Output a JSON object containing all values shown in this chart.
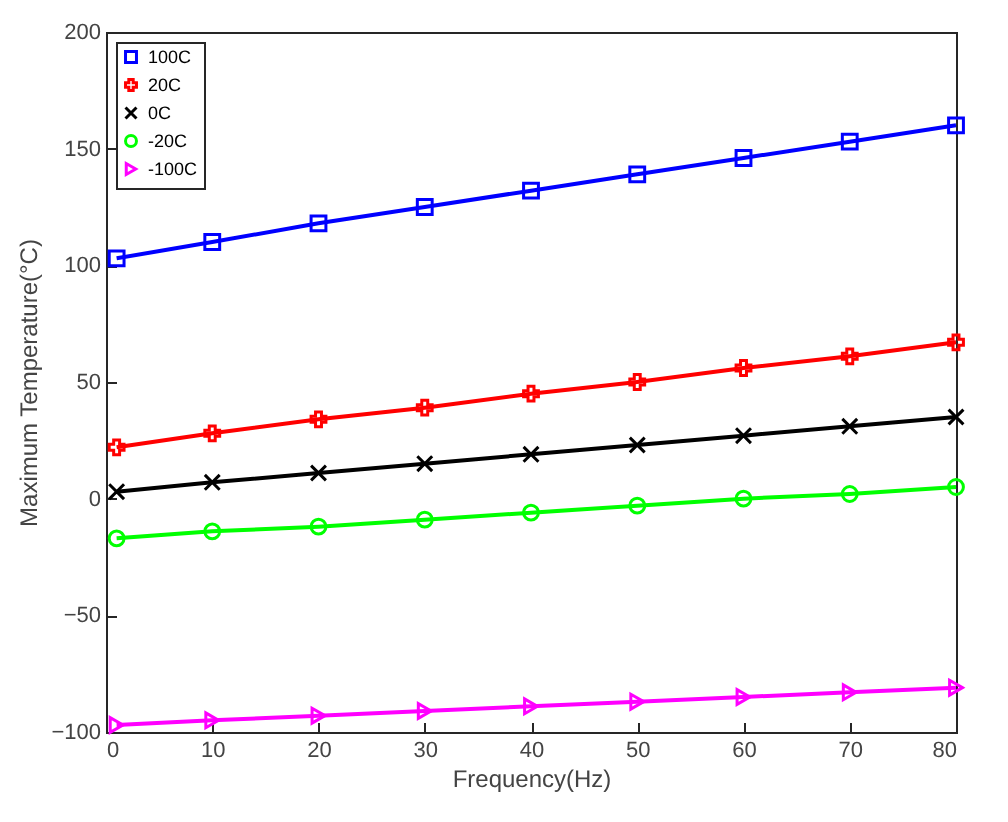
{
  "chart_data": {
    "type": "line",
    "xlabel": "Frequency(Hz)",
    "ylabel": "Maximum Temperature(°C)",
    "x": [
      1,
      10,
      20,
      30,
      40,
      50,
      60,
      70,
      80
    ],
    "xlim": [
      0,
      80
    ],
    "xticks": [
      0,
      10,
      20,
      30,
      40,
      50,
      60,
      70,
      80
    ],
    "ylim": [
      -100,
      200
    ],
    "yticks": [
      -100,
      -50,
      0,
      50,
      100,
      150,
      200
    ],
    "grid": false,
    "legend": "top left",
    "line_style": "solid",
    "series": [
      {
        "name": "100C",
        "color": "#0000ff",
        "marker": "square",
        "values": [
          103,
          110,
          118,
          125,
          132,
          139,
          146,
          153,
          160
        ]
      },
      {
        "name": "20C",
        "color": "#ff0000",
        "marker": "cross",
        "values": [
          22,
          28,
          34,
          39,
          45,
          50,
          56,
          61,
          67
        ]
      },
      {
        "name": "0C",
        "color": "#000000",
        "marker": "x",
        "values": [
          3,
          7,
          11,
          15,
          19,
          23,
          27,
          31,
          35
        ]
      },
      {
        "name": "-20C",
        "color": "#00ff00",
        "marker": "circle",
        "values": [
          -17,
          -14,
          -12,
          -9,
          -6,
          -3,
          0,
          2,
          5
        ]
      },
      {
        "name": "-100C",
        "color": "#ff00ff",
        "marker": "triangle",
        "values": [
          -97,
          -95,
          -93,
          -91,
          -89,
          -87,
          -85,
          -83,
          -81
        ]
      }
    ]
  }
}
